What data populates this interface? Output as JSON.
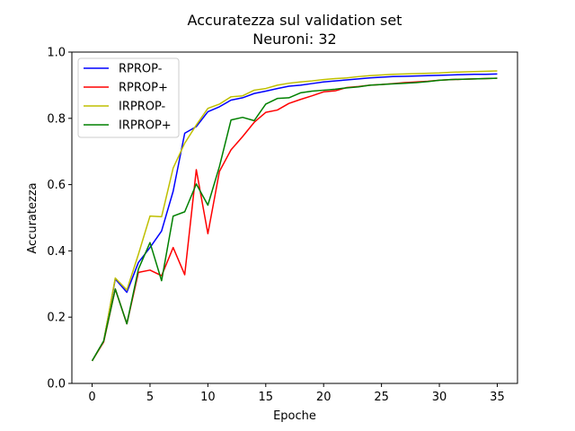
{
  "chart_data": {
    "type": "line",
    "title": "Accuratezza sul validation set",
    "subtitle": "Neuroni: 32",
    "xlabel": "Epoche",
    "ylabel": "Accuratezza",
    "xlim": [
      -1.75,
      36.75
    ],
    "ylim": [
      0.0,
      1.0
    ],
    "xticks": [
      0,
      5,
      10,
      15,
      20,
      25,
      30,
      35
    ],
    "yticks": [
      0.0,
      0.2,
      0.4,
      0.6,
      0.8,
      1.0
    ],
    "xtick_labels": [
      "0",
      "5",
      "10",
      "15",
      "20",
      "25",
      "30",
      "35"
    ],
    "ytick_labels": [
      "0.0",
      "0.2",
      "0.4",
      "0.6",
      "0.8",
      "1.0"
    ],
    "grid": false,
    "legend_position": "top-left",
    "x": [
      0,
      1,
      2,
      3,
      4,
      5,
      6,
      7,
      8,
      9,
      10,
      11,
      12,
      13,
      14,
      15,
      16,
      17,
      18,
      19,
      20,
      21,
      22,
      23,
      24,
      25,
      26,
      27,
      28,
      29,
      30,
      31,
      32,
      33,
      34,
      35
    ],
    "series": [
      {
        "name": "RPROP-",
        "color": "#0000ff",
        "values": [
          0.068,
          0.128,
          0.315,
          0.275,
          0.365,
          0.41,
          0.46,
          0.58,
          0.755,
          0.775,
          0.82,
          0.835,
          0.855,
          0.862,
          0.875,
          0.882,
          0.89,
          0.897,
          0.9,
          0.905,
          0.91,
          0.913,
          0.916,
          0.919,
          0.922,
          0.924,
          0.926,
          0.927,
          0.928,
          0.929,
          0.93,
          0.931,
          0.932,
          0.933,
          0.933,
          0.934
        ]
      },
      {
        "name": "RPROP+",
        "color": "#ff0000",
        "values": [
          0.068,
          0.125,
          0.285,
          0.18,
          0.335,
          0.342,
          0.325,
          0.41,
          0.328,
          0.645,
          0.452,
          0.64,
          0.705,
          0.745,
          0.788,
          0.818,
          0.825,
          0.845,
          0.857,
          0.868,
          0.88,
          0.883,
          0.893,
          0.896,
          0.9,
          0.902,
          0.905,
          0.908,
          0.91,
          0.912,
          0.915,
          0.917,
          0.918,
          0.919,
          0.92,
          0.921
        ]
      },
      {
        "name": "IRPROP-",
        "color": "#bfbf00",
        "values": [
          0.068,
          0.128,
          0.318,
          0.282,
          0.39,
          0.505,
          0.503,
          0.65,
          0.725,
          0.78,
          0.83,
          0.843,
          0.865,
          0.868,
          0.885,
          0.89,
          0.9,
          0.906,
          0.91,
          0.913,
          0.917,
          0.92,
          0.922,
          0.926,
          0.929,
          0.931,
          0.933,
          0.934,
          0.935,
          0.936,
          0.937,
          0.939,
          0.94,
          0.941,
          0.942,
          0.943
        ]
      },
      {
        "name": "IRPROP+",
        "color": "#008000",
        "values": [
          0.068,
          0.128,
          0.285,
          0.18,
          0.345,
          0.425,
          0.31,
          0.505,
          0.518,
          0.602,
          0.538,
          0.655,
          0.795,
          0.803,
          0.793,
          0.843,
          0.86,
          0.862,
          0.877,
          0.882,
          0.885,
          0.888,
          0.892,
          0.895,
          0.9,
          0.902,
          0.904,
          0.906,
          0.908,
          0.911,
          0.915,
          0.917,
          0.918,
          0.919,
          0.92,
          0.921
        ]
      }
    ]
  }
}
